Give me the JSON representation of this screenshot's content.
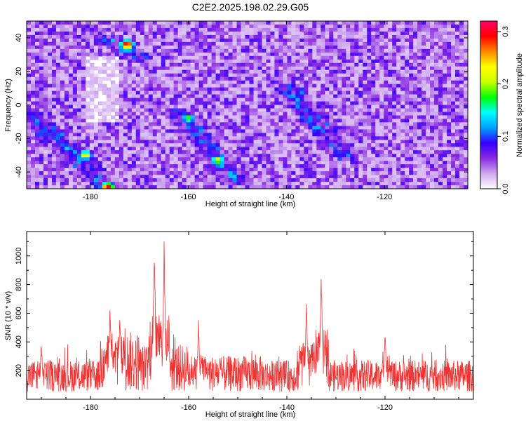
{
  "title": "C2E2.2025.198.02.29.G05",
  "chart_data": [
    {
      "type": "heatmap",
      "xlabel": "Height of straight line (km)",
      "ylabel": "Frequency (Hz)",
      "xlim": [
        -193,
        -103
      ],
      "ylim": [
        -50,
        50
      ],
      "x_ticks": [
        -180,
        -160,
        -140,
        -120
      ],
      "y_ticks": [
        -40,
        -20,
        0,
        20,
        40
      ],
      "colorbar": {
        "label": "Normalized spectral amplitude",
        "range": [
          0,
          0.32
        ],
        "ticks": [
          0.0,
          0.1,
          0.2,
          0.3
        ],
        "colors": [
          "#ffffff",
          "#cfa8f0",
          "#8a2be2",
          "#3300ff",
          "#00a0ff",
          "#00ffff",
          "#00ff00",
          "#ccff00",
          "#ffff00",
          "#ff8800",
          "#ff0000",
          "#ff0066"
        ]
      },
      "tracks": [
        {
          "x": [
            -193,
            -176
          ],
          "y": [
            -5,
            -50
          ]
        },
        {
          "x": [
            -176,
            -170
          ],
          "y": [
            38,
            28
          ]
        },
        {
          "x": [
            -162,
            -150
          ],
          "y": [
            -5,
            -45
          ]
        },
        {
          "x": [
            -140,
            -128
          ],
          "y": [
            10,
            -30
          ]
        }
      ],
      "peaks": [
        {
          "x": -172.5,
          "y": 36,
          "value": 0.31
        },
        {
          "x": -176.5,
          "y": -49,
          "value": 0.3
        },
        {
          "x": -181,
          "y": -30,
          "value": 0.24
        },
        {
          "x": -154,
          "y": -33,
          "value": 0.22
        },
        {
          "x": -160,
          "y": -8,
          "value": 0.19
        },
        {
          "x": -186,
          "y": -18,
          "value": 0.12
        },
        {
          "x": -137,
          "y": 8,
          "value": 0.12
        }
      ]
    },
    {
      "type": "line",
      "xlabel": "Height of straight line (km)",
      "ylabel": "SNR (10 * v/v)",
      "xlim": [
        -193,
        -102
      ],
      "ylim": [
        0,
        1170
      ],
      "x_ticks": [
        -180,
        -160,
        -140,
        -120
      ],
      "y_ticks": [
        200,
        400,
        600,
        800,
        1000
      ],
      "color": "#ee3333",
      "baseline": 150,
      "peaks": [
        {
          "x": -190,
          "value": 420
        },
        {
          "x": -176,
          "value": 700
        },
        {
          "x": -174,
          "value": 660
        },
        {
          "x": -167,
          "value": 1170
        },
        {
          "x": -165,
          "value": 1110
        },
        {
          "x": -158,
          "value": 560
        },
        {
          "x": -136,
          "value": 720
        },
        {
          "x": -133,
          "value": 900
        },
        {
          "x": -120,
          "value": 480
        }
      ]
    }
  ]
}
